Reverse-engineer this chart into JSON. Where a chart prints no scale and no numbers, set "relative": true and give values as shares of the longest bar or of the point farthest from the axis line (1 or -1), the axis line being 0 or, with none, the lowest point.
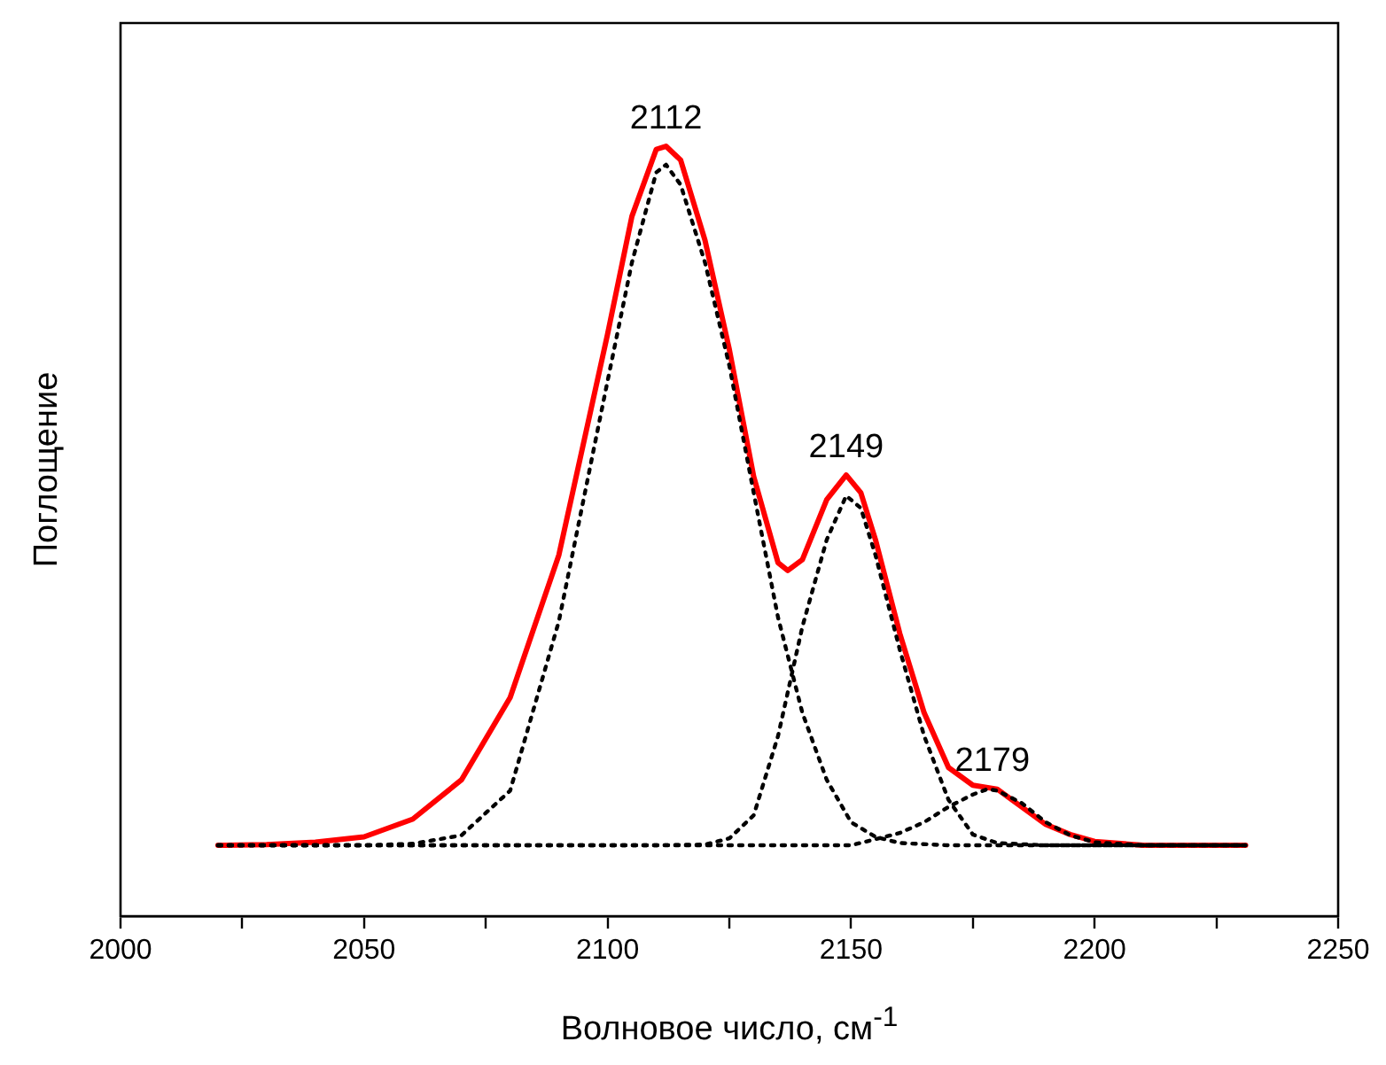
{
  "chart_data": {
    "type": "line",
    "relative": true,
    "xlabel": "Волновое число, см$^{-1}$",
    "ylabel": "Поглощение",
    "xlim": [
      2000,
      2250
    ],
    "xticks": [
      2000,
      {
        "value": 2025,
        "label": null
      },
      2050,
      {
        "value": 2075,
        "label": null
      },
      2100,
      {
        "value": 2125,
        "label": null
      },
      2150,
      {
        "value": 2175,
        "label": null
      },
      2200,
      {
        "value": 2225,
        "label": null
      },
      2250
    ],
    "marker": "none",
    "series": [
      {
        "color": "#ff0000",
        "line_style": "solid",
        "x": [
          2020,
          2030,
          2040,
          2050,
          2060,
          2070,
          2080,
          2090,
          2100,
          2105,
          2110,
          2112,
          2115,
          2120,
          2125,
          2130,
          2135,
          2137,
          2140,
          2145,
          2149,
          2152,
          2155,
          2160,
          2165,
          2170,
          2175,
          2180,
          2185,
          2190,
          2195,
          2200,
          2210,
          2231
        ],
        "values": [
          0.092,
          0.093,
          0.096,
          0.103,
          0.126,
          0.177,
          0.284,
          0.469,
          0.756,
          0.909,
          0.996,
          1.0,
          0.982,
          0.878,
          0.736,
          0.571,
          0.459,
          0.449,
          0.463,
          0.541,
          0.573,
          0.55,
          0.489,
          0.367,
          0.264,
          0.193,
          0.17,
          0.165,
          0.142,
          0.119,
          0.106,
          0.097,
          0.092,
          0.092
        ]
      },
      {
        "color": "#000000",
        "line_style": "dotted",
        "x": [
          2020,
          2050,
          2060,
          2070,
          2080,
          2090,
          2100,
          2105,
          2110,
          2112,
          2115,
          2120,
          2125,
          2130,
          2135,
          2140,
          2145,
          2150,
          2155,
          2160,
          2170,
          2231
        ],
        "values": [
          0.092,
          0.092,
          0.094,
          0.105,
          0.163,
          0.383,
          0.695,
          0.849,
          0.966,
          0.976,
          0.95,
          0.849,
          0.715,
          0.55,
          0.388,
          0.264,
          0.177,
          0.122,
          0.103,
          0.095,
          0.092,
          0.092
        ]
      },
      {
        "color": "#000000",
        "line_style": "dotted",
        "x": [
          2020,
          2110,
          2120,
          2125,
          2130,
          2135,
          2140,
          2145,
          2149,
          2152,
          2155,
          2160,
          2165,
          2170,
          2175,
          2180,
          2190,
          2231
        ],
        "values": [
          0.092,
          0.092,
          0.093,
          0.101,
          0.131,
          0.234,
          0.376,
          0.489,
          0.546,
          0.53,
          0.469,
          0.346,
          0.234,
          0.151,
          0.106,
          0.095,
          0.092,
          0.092
        ]
      },
      {
        "color": "#000000",
        "line_style": "dotted",
        "x": [
          2020,
          2150,
          2155,
          2160,
          2165,
          2170,
          2175,
          2178,
          2180,
          2185,
          2190,
          2195,
          2200,
          2210,
          2231
        ],
        "values": [
          0.092,
          0.092,
          0.1,
          0.108,
          0.122,
          0.142,
          0.158,
          0.165,
          0.163,
          0.147,
          0.122,
          0.105,
          0.096,
          0.092,
          0.092
        ]
      }
    ],
    "annotations": [
      {
        "text": "2112",
        "x": 2112,
        "y": 1.0
      },
      {
        "text": "2149",
        "x": 2149,
        "y": 0.573
      },
      {
        "text": "2179",
        "x": 2179,
        "y": 0.165
      }
    ]
  }
}
